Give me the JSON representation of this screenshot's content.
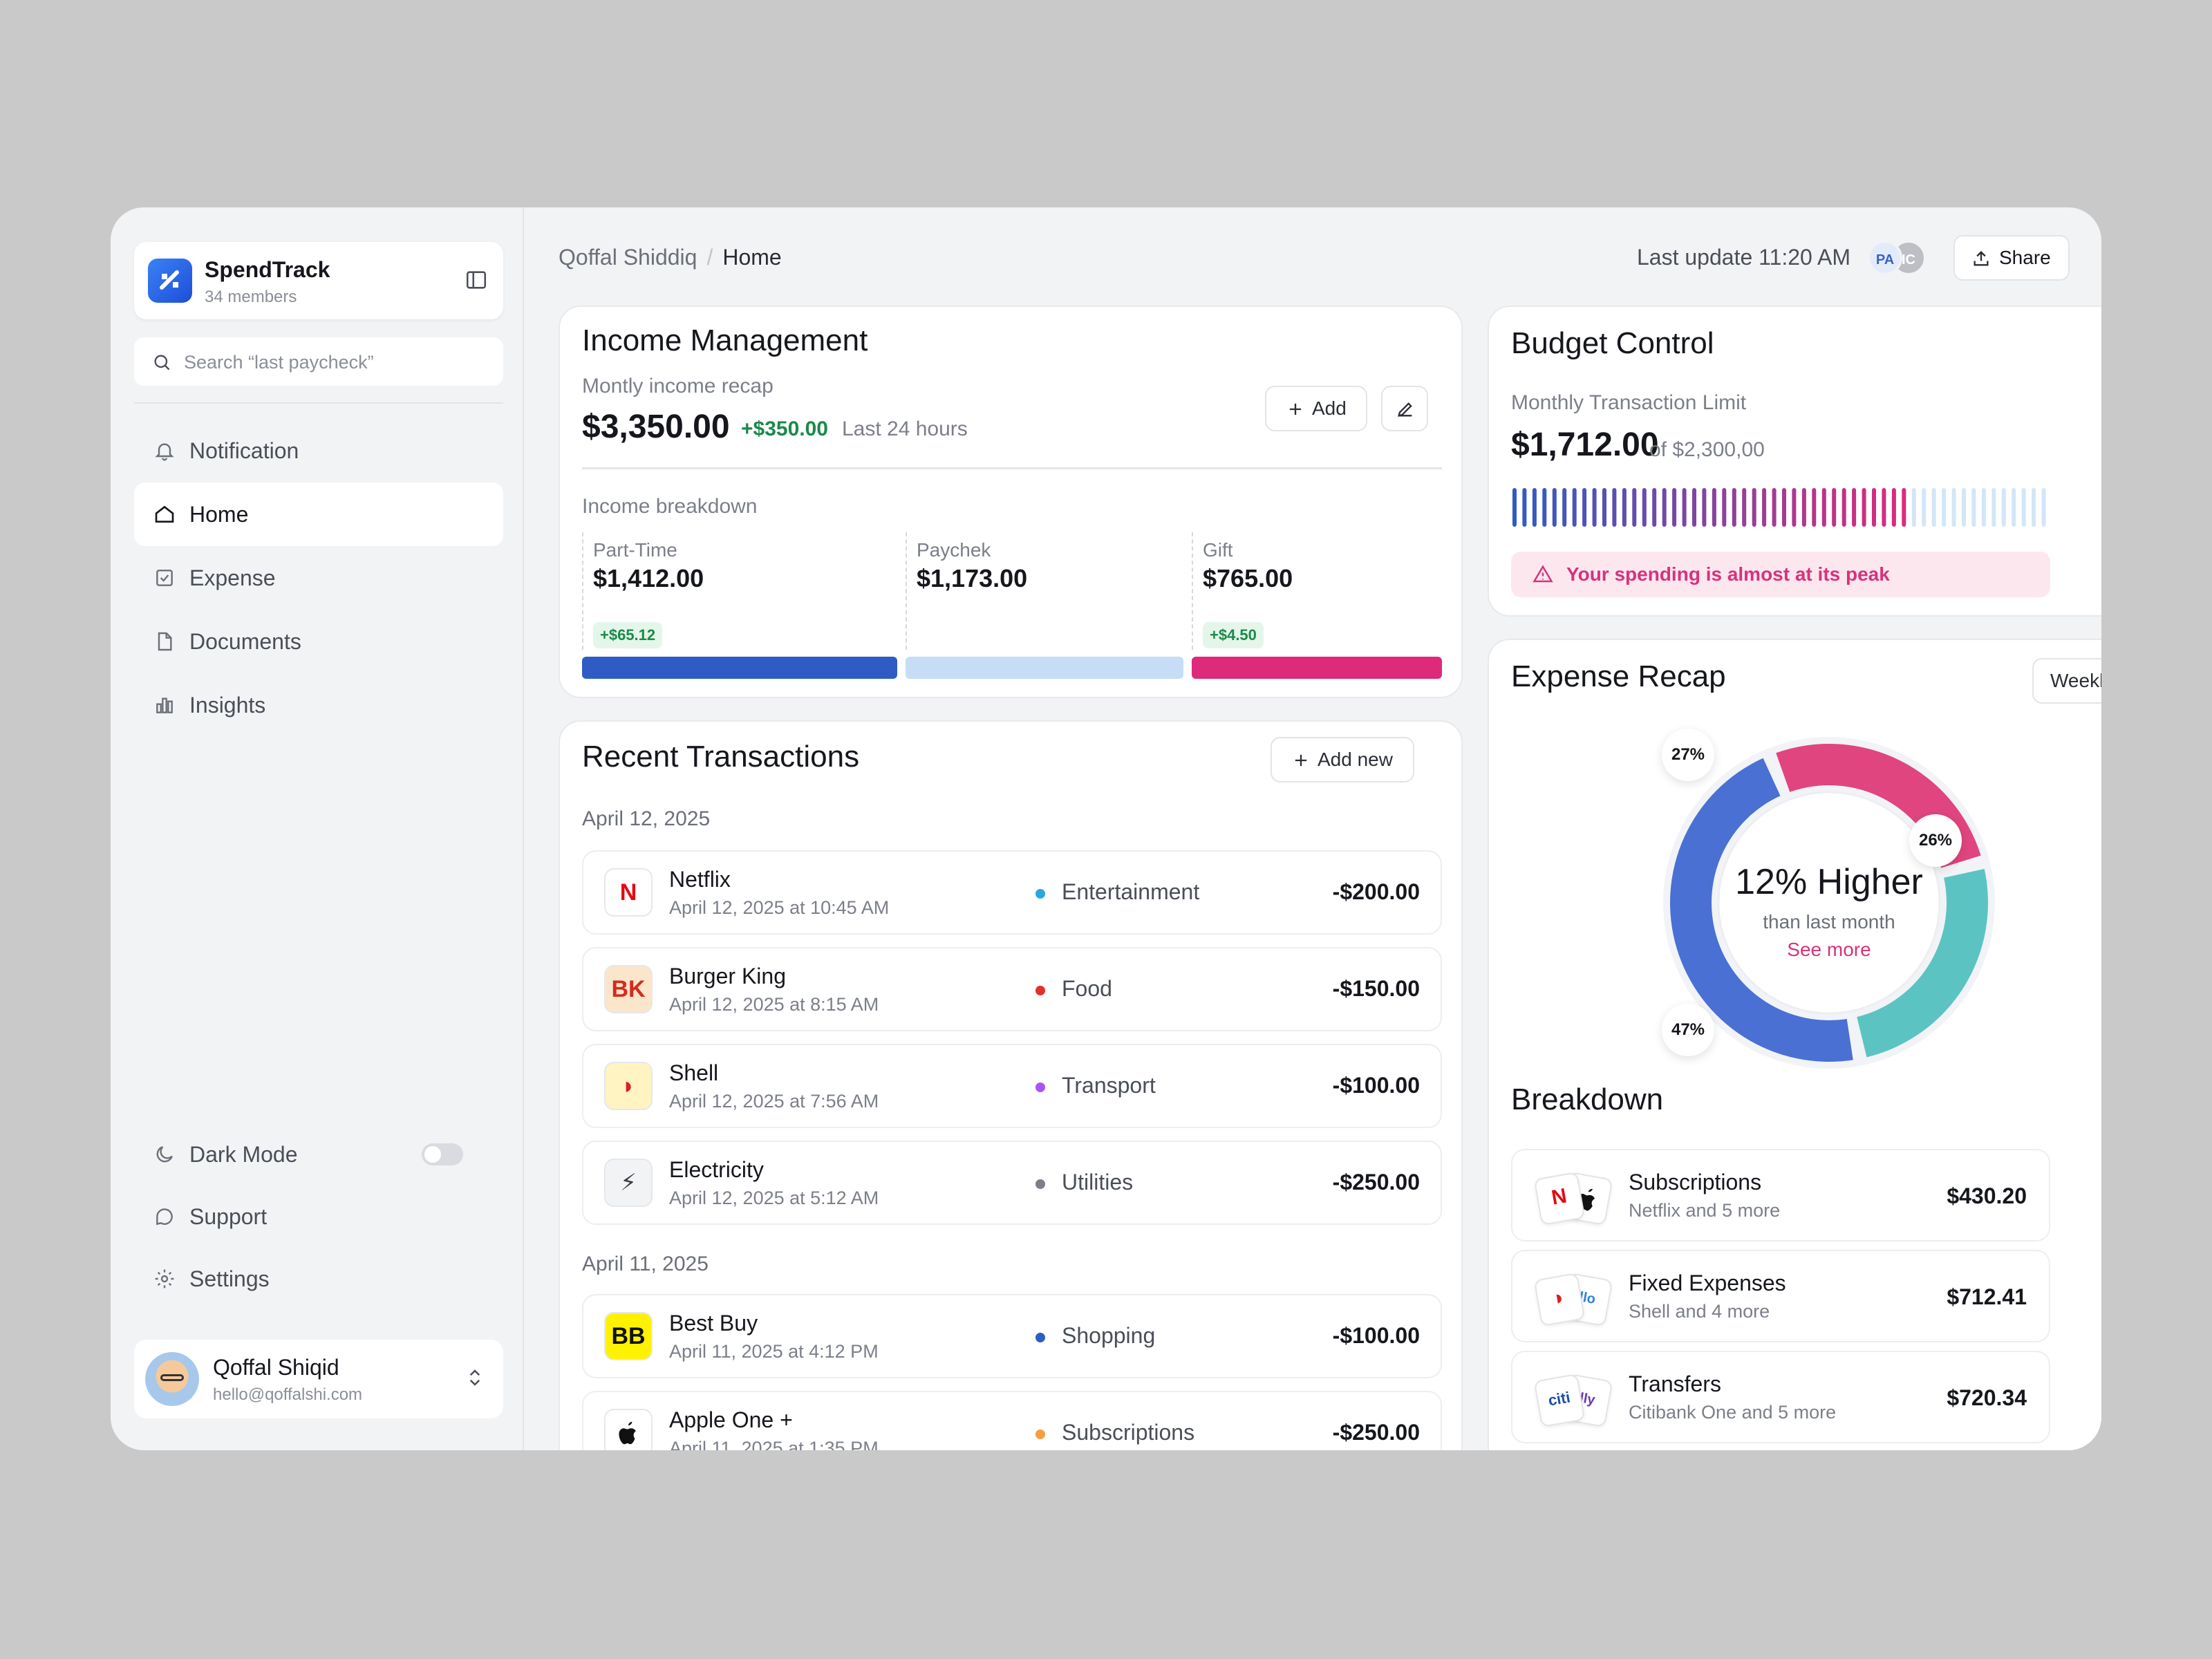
{
  "brand": {
    "name": "SpendTrack",
    "members": "34 members"
  },
  "search": {
    "placeholder": "Search “last paycheck”"
  },
  "nav": {
    "notification": "Notification",
    "home": "Home",
    "expense": "Expense",
    "documents": "Documents",
    "insights": "Insights",
    "dark_mode": "Dark Mode",
    "dark_mode_on": false,
    "support": "Support",
    "settings": "Settings"
  },
  "user": {
    "name": "Qoffal Shiqid",
    "email": "hello@qoffalshi.com"
  },
  "header": {
    "breadcrumb_user": "Qoffal Shiddiq",
    "breadcrumb_sep": "/",
    "breadcrumb_page": "Home",
    "last_update": "Last update 11:20 AM",
    "avatar1": "PA",
    "avatar2": "IC",
    "share": "Share"
  },
  "income": {
    "title": "Income Management",
    "subtitle": "Montly income recap",
    "amount": "$3,350.00",
    "delta": "+$350.00",
    "delta_label": "Last 24 hours",
    "add": "Add",
    "breakdown_title": "Income breakdown",
    "segments": [
      {
        "label": "Part-Time",
        "value": "$1,412.00",
        "badge": "+$65.12",
        "color": "#2f5cc4"
      },
      {
        "label": "Paychek",
        "value": "$1,173.00",
        "badge": "",
        "color": "#c6ddf5"
      },
      {
        "label": "Gift",
        "value": "$765.00",
        "badge": "+$4.50",
        "color": "#dd2a7b"
      }
    ]
  },
  "transactions": {
    "title": "Recent Transactions",
    "add_new": "Add new",
    "groups": [
      {
        "date": "April 12, 2025"
      },
      {
        "date": "April 11, 2025"
      }
    ],
    "rows": [
      {
        "name": "Netflix",
        "date": "April 12, 2025 at 10:45 AM",
        "category": "Entertainment",
        "dot": "#29a8e0",
        "amount": "-$200.00",
        "logo": "N",
        "logo_color": "#e50914",
        "logo_bg": "#ffffff"
      },
      {
        "name": "Burger King",
        "date": "April 12, 2025 at 8:15 AM",
        "category": "Food",
        "dot": "#e0312f",
        "amount": "-$150.00",
        "logo": "BK",
        "logo_color": "#d52b1e",
        "logo_bg": "#fbe6cc"
      },
      {
        "name": "Shell",
        "date": "April 12, 2025 at 7:56 AM",
        "category": "Transport",
        "dot": "#a855f7",
        "amount": "-$100.00",
        "logo": "◗",
        "logo_color": "#dd1d21",
        "logo_bg": "#fff4c2"
      },
      {
        "name": "Electricity",
        "date": "April 12, 2025 at 5:12 AM",
        "category": "Utilities",
        "dot": "#7b7f88",
        "amount": "-$250.00",
        "logo": "⚡",
        "logo_color": "#3a3d44",
        "logo_bg": "#f2f3f5"
      },
      {
        "name": "Best Buy",
        "date": "April 11, 2025 at 4:12 PM",
        "category": "Shopping",
        "dot": "#2f5cc4",
        "amount": "-$100.00",
        "logo": "BB",
        "logo_color": "#111111",
        "logo_bg": "#fff200"
      },
      {
        "name": "Apple One +",
        "date": "April 11, 2025 at 1:35 PM",
        "category": "Subscriptions",
        "dot": "#f59e42",
        "amount": "-$250.00",
        "logo": "",
        "logo_color": "#111111",
        "logo_bg": "#ffffff"
      }
    ]
  },
  "budget": {
    "title": "Budget Control",
    "subtitle": "Monthly Transaction Limit",
    "amount": "$1,712.00",
    "limit": "of $2,300,00",
    "used_fraction": 0.74,
    "warning": "Your spending is almost at its peak"
  },
  "recap": {
    "title": "Expense Recap",
    "period": "Weekly",
    "main": "12% Higher",
    "sub": "than last month",
    "link": "See more",
    "slices": [
      {
        "pct": 27,
        "label": "27%",
        "color": "#e0457f"
      },
      {
        "pct": 26,
        "label": "26%",
        "color": "#5cc3c3"
      },
      {
        "pct": 47,
        "label": "47%",
        "color": "#4a70d4"
      }
    ]
  },
  "breakdown": {
    "title": "Breakdown",
    "items": [
      {
        "name": "Subscriptions",
        "sub": "Netflix and 5 more",
        "amount": "$430.20",
        "l1": "N",
        "l1c": "#e50914",
        "l2": "",
        "l2c": "#111"
      },
      {
        "name": "Fixed Expenses",
        "sub": "Shell and 4 more",
        "amount": "$712.41",
        "l1": "◗",
        "l1c": "#dd1d21",
        "l2": "llo",
        "l2c": "#2f7fe0"
      },
      {
        "name": "Transfers",
        "sub": "Citibank One and 5 more",
        "amount": "$720.34",
        "l1": "citi",
        "l1c": "#1c4fa1",
        "l2": "lly",
        "l2c": "#6a3ab8"
      }
    ]
  }
}
